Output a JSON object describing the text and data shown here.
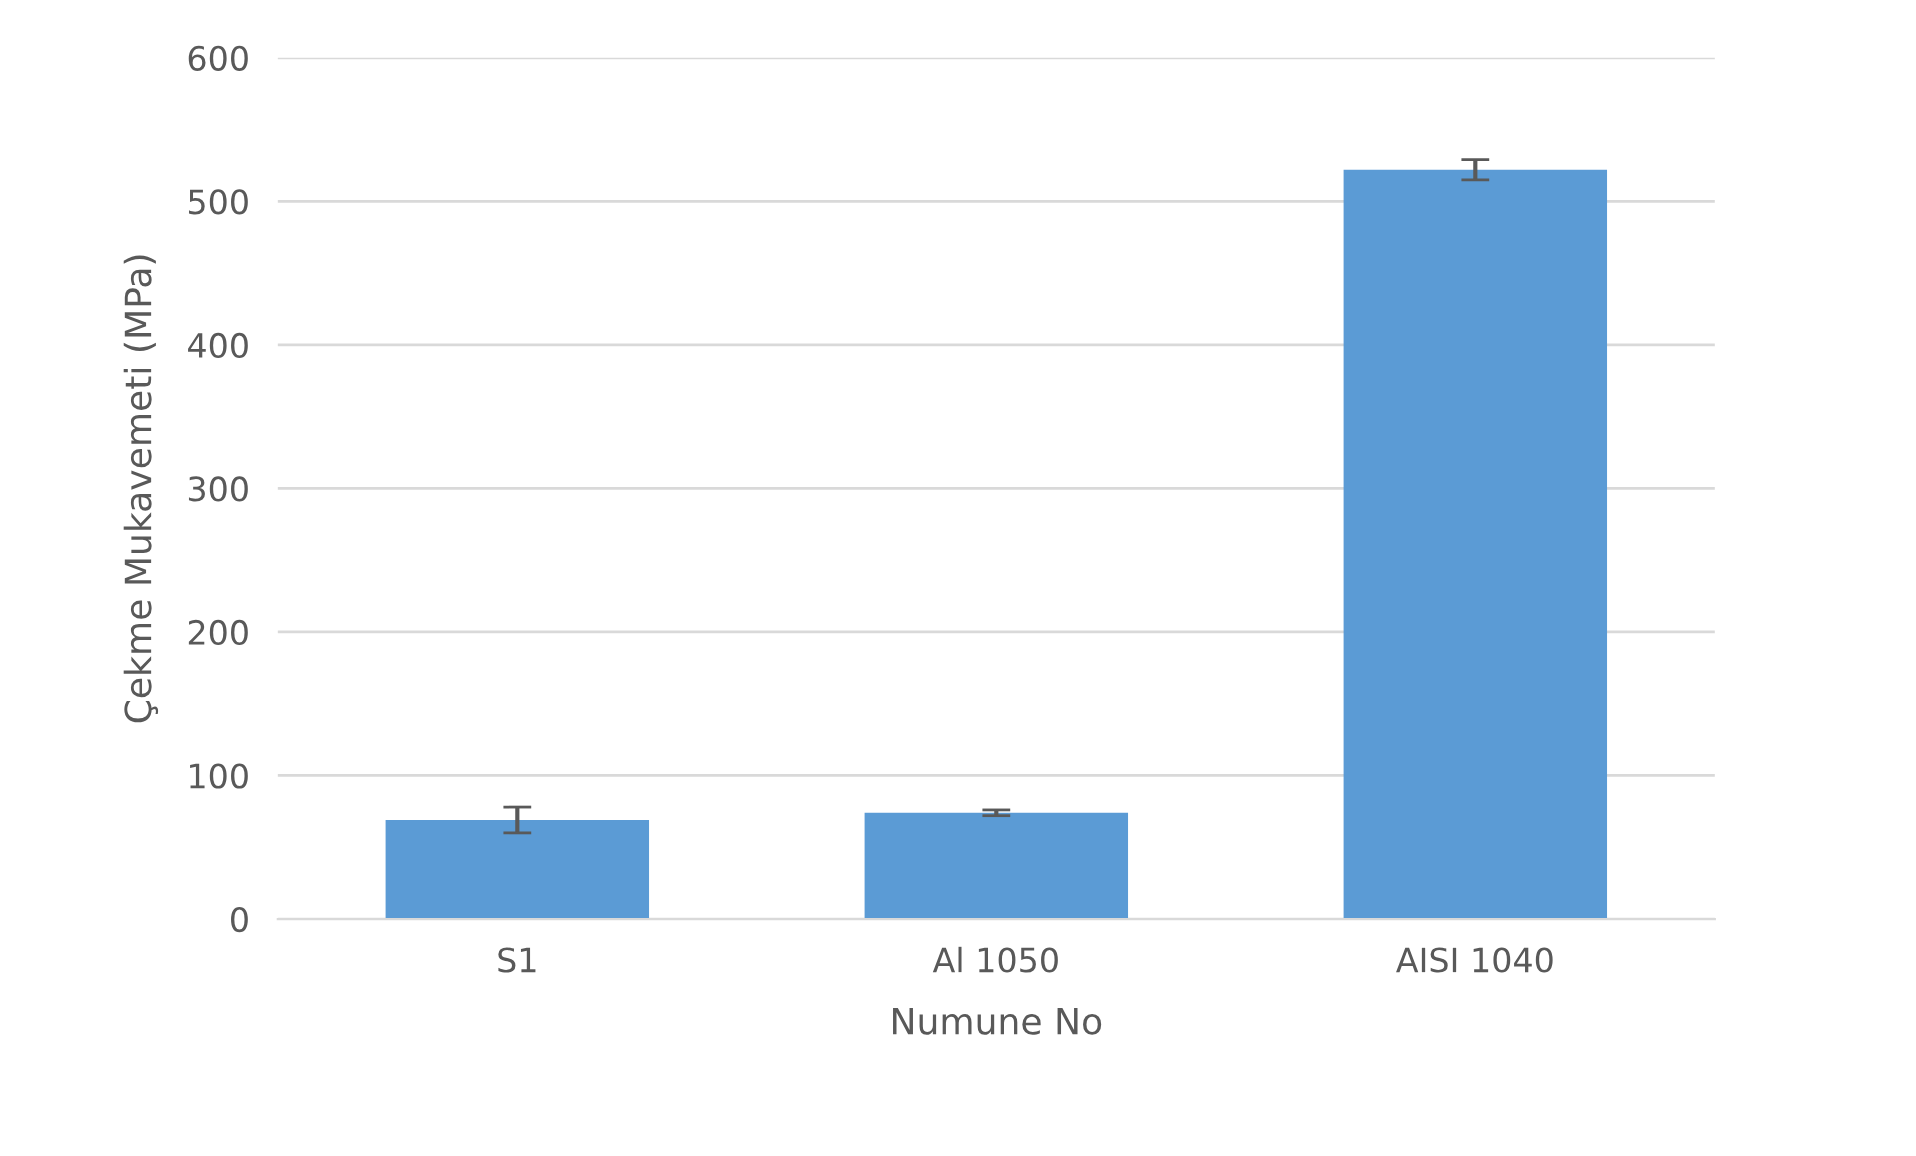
{
  "chart_data": {
    "type": "bar",
    "xlabel": "Numune No",
    "ylabel": "Çekme Mukavemeti (MPa)",
    "categories": [
      "S1",
      "Al 1050",
      "AISI 1040"
    ],
    "values": [
      69,
      74,
      522
    ],
    "errors": [
      9,
      2,
      7
    ],
    "color": "#5b9bd5",
    "ylim": [
      0,
      600
    ],
    "yticks": [
      0,
      100,
      200,
      300,
      400,
      500,
      600
    ],
    "grid": "y"
  }
}
